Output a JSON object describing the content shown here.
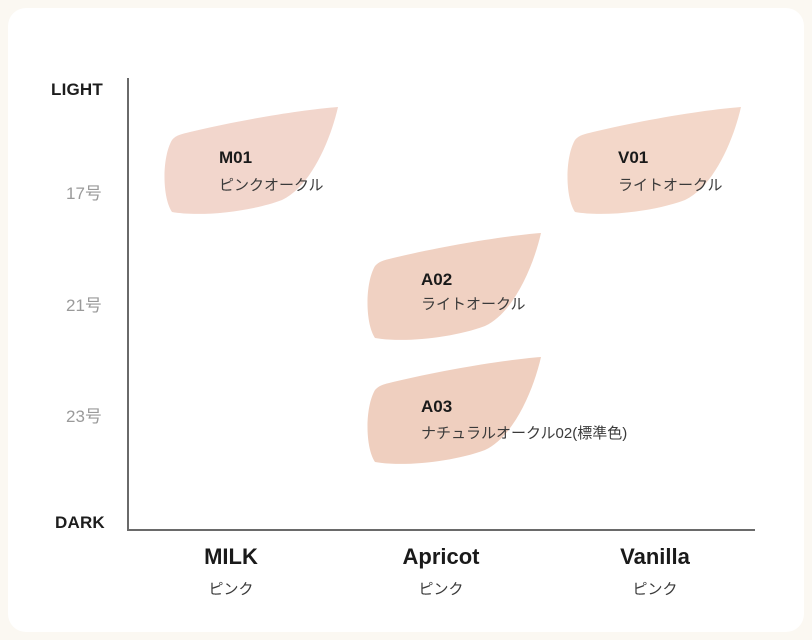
{
  "chart_data": {
    "type": "scatter",
    "y_axis": {
      "top_label": "LIGHT",
      "bottom_label": "DARK",
      "ticks": [
        "17号",
        "21号",
        "23号"
      ]
    },
    "x_axis": {
      "categories": [
        {
          "name": "MILK",
          "sub": "ピンク"
        },
        {
          "name": "Apricot",
          "sub": "ピンク"
        },
        {
          "name": "Vanilla",
          "sub": "ピンク"
        }
      ]
    },
    "points": [
      {
        "code": "M01",
        "name": "ピンクオークル",
        "x": "MILK",
        "y": "17号",
        "color": "#f2d6cc"
      },
      {
        "code": "V01",
        "name": "ライトオークル",
        "x": "Vanilla",
        "y": "17号",
        "color": "#f3d7c9"
      },
      {
        "code": "A02",
        "name": "ライトオークル",
        "x": "Apricot",
        "y": "21号",
        "color": "#f0d1c2"
      },
      {
        "code": "A03",
        "name": "ナチュラルオークル02(標準色)",
        "x": "Apricot",
        "y": "23号",
        "color": "#efcfbf"
      }
    ]
  }
}
